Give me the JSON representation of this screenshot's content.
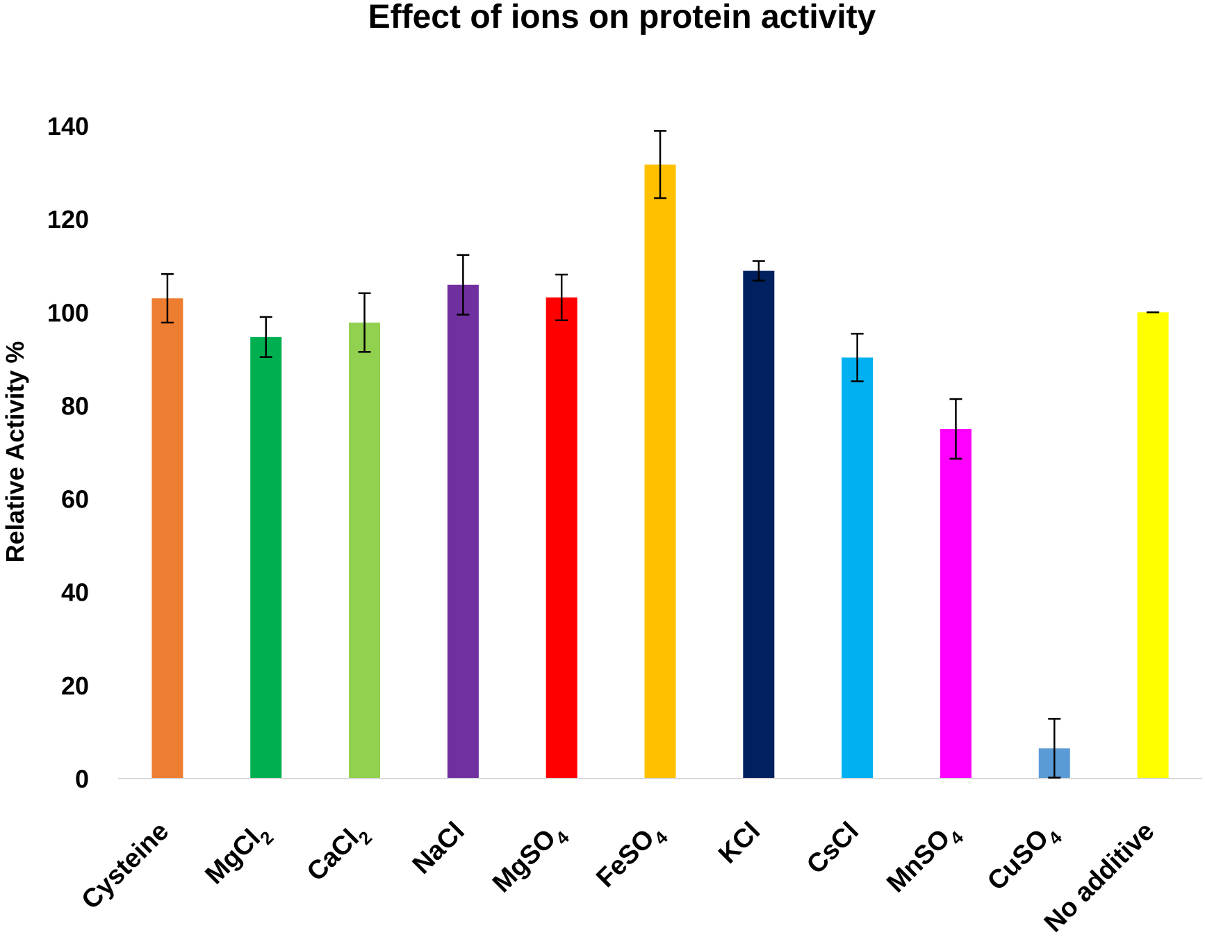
{
  "chart_data": {
    "type": "bar",
    "title": "Effect of ions on protein activity",
    "xlabel": "",
    "ylabel": "Relative Activity %",
    "ylim": [
      0,
      140
    ],
    "yticks": [
      "0",
      "20",
      "40",
      "60",
      "80",
      "100",
      "120",
      "140"
    ],
    "grid": false,
    "legend": "none",
    "categories": [
      {
        "base": "Cysteine",
        "sub": "",
        "tail": ""
      },
      {
        "base": "MgCl",
        "sub": "2",
        "tail": ""
      },
      {
        "base": "CaCl",
        "sub": "2",
        "tail": ""
      },
      {
        "base": "NaCl",
        "sub": "",
        "tail": ""
      },
      {
        "base": "MgSO",
        "sub": "4",
        "tail": ""
      },
      {
        "base": "FeSO",
        "sub": "4",
        "tail": ""
      },
      {
        "base": "KCl",
        "sub": "",
        "tail": ""
      },
      {
        "base": "CsCl",
        "sub": "",
        "tail": ""
      },
      {
        "base": "MnSO",
        "sub": "4",
        "tail": ""
      },
      {
        "base": "CuSO",
        "sub": "4",
        "tail": ""
      },
      {
        "base": "No additive",
        "sub": "",
        "tail": ""
      }
    ],
    "values": [
      103,
      94.7,
      97.8,
      105.9,
      103.2,
      131.7,
      108.9,
      90.3,
      75,
      6.5,
      100
    ],
    "errors": [
      5.2,
      4.3,
      6.3,
      6.4,
      4.9,
      7.2,
      2.1,
      5.1,
      6.4,
      6.3,
      0
    ],
    "colors": [
      "#ED7D31",
      "#00B050",
      "#92D050",
      "#7030A0",
      "#FF0000",
      "#FFC000",
      "#002060",
      "#00B0F0",
      "#FF00FF",
      "#5B9BD5",
      "#FFFF00"
    ]
  }
}
